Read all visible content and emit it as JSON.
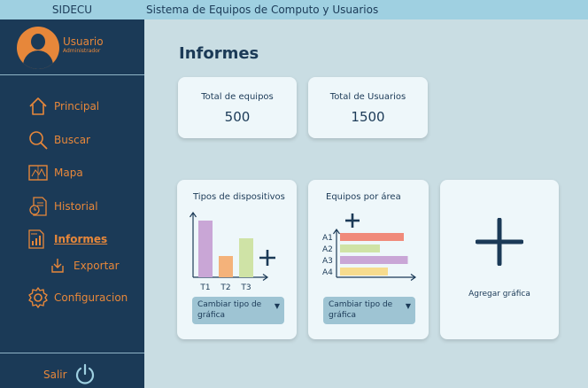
{
  "topbar": {
    "brand": "SIDECU",
    "title": "Sistema de Equipos de Computo y Usuarios"
  },
  "user": {
    "name": "Usuario",
    "role": "Administrador"
  },
  "nav": {
    "items": [
      {
        "label": "Principal",
        "icon": "home-icon"
      },
      {
        "label": "Buscar",
        "icon": "search-icon"
      },
      {
        "label": "Mapa",
        "icon": "map-icon"
      },
      {
        "label": "Historial",
        "icon": "history-icon"
      },
      {
        "label": "Informes",
        "icon": "reports-icon",
        "active": true
      },
      {
        "label": "Exportar",
        "icon": "export-icon",
        "sub": true
      },
      {
        "label": "Configuracion",
        "icon": "gear-icon"
      }
    ],
    "logout": "Salir"
  },
  "main": {
    "title": "Informes",
    "stats": [
      {
        "label": "Total de equipos",
        "value": "500"
      },
      {
        "label": "Total de Usuarios",
        "value": "1500"
      }
    ],
    "cards": [
      {
        "title": "Tipos de dispositivos",
        "dropdown": "Cambiar tipo de gráfica"
      },
      {
        "title": "Equipos por área",
        "dropdown": "Cambiar tipo de gráfica"
      },
      {
        "add_label": "Agregar gráfica"
      }
    ]
  },
  "colors": {
    "sidebar": "#1b3a57",
    "accent": "#e7873a",
    "topbar": "#9fd0e1",
    "background": "#c9dde3",
    "card": "#eef7fa",
    "purple": "#c9a6d6",
    "orange": "#f4b27a",
    "green": "#cfe3a6",
    "salmon": "#f08a7a",
    "yellow": "#f7dc8e"
  },
  "chart_data": [
    {
      "type": "bar",
      "categories": [
        "T1",
        "T2",
        "T3"
      ],
      "values": [
        8,
        3,
        5.5
      ],
      "title": "Tipos de dispositivos"
    },
    {
      "type": "bar",
      "orientation": "horizontal",
      "categories": [
        "A1",
        "A2",
        "A3",
        "A4"
      ],
      "values": [
        8,
        5,
        8.5,
        6
      ],
      "title": "Equipos por área"
    }
  ]
}
